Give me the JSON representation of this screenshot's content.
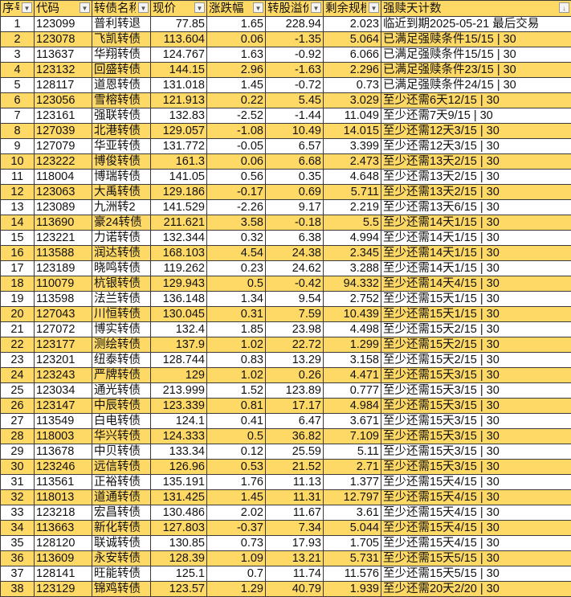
{
  "colors": {
    "header_bg": "#FFD966",
    "alt_row_bg": "#FFD966",
    "grid": "#3a3a3a"
  },
  "columns": [
    "序号",
    "代码",
    "转债名称",
    "现价",
    "涨跌幅",
    "转股溢价率",
    "剩余规模",
    "强赎天计数"
  ],
  "filter_icons": [
    "filter-dropdown-icon",
    "filter-dropdown-icon",
    "filter-dropdown-icon",
    "filter-dropdown-icon",
    "filter-dropdown-icon",
    "filter-dropdown-icon",
    "filter-dropdown-icon",
    "sort-filter-icon"
  ],
  "rows": [
    [
      "1",
      "123099",
      "普利转退",
      "77.85",
      "1.65",
      "228.94",
      "2.023",
      "临近到期2025-05-21 最后交易"
    ],
    [
      "2",
      "123078",
      "飞凯转债",
      "113.604",
      "0.06",
      "-1.35",
      "5.064",
      "已满足强赎条件15/15 | 30"
    ],
    [
      "3",
      "113637",
      "华翔转债",
      "124.767",
      "1.63",
      "-0.92",
      "6.066",
      "已满足强赎条件15/15 | 30"
    ],
    [
      "4",
      "123132",
      "回盛转债",
      "144.15",
      "2.96",
      "-1.63",
      "2.296",
      "已满足强赎条件23/15 | 30"
    ],
    [
      "5",
      "128117",
      "道恩转债",
      "131.018",
      "1.45",
      "-0.72",
      "0.73",
      "已满足强赎条件24/15 | 30"
    ],
    [
      "6",
      "123056",
      "雪榕转债",
      "121.913",
      "0.22",
      "5.45",
      "3.029",
      "至少还需6天12/15 | 30"
    ],
    [
      "7",
      "123161",
      "强联转债",
      "132.83",
      "-2.52",
      "-1.44",
      "11.049",
      "至少还需7天9/15 | 30"
    ],
    [
      "8",
      "127039",
      "北港转债",
      "129.057",
      "-1.08",
      "10.49",
      "14.015",
      "至少还需12天3/15 | 30"
    ],
    [
      "9",
      "127079",
      "华亚转债",
      "131.772",
      "-0.05",
      "6.57",
      "3.399",
      "至少还需12天3/15 | 30"
    ],
    [
      "10",
      "123222",
      "博俊转债",
      "161.3",
      "0.06",
      "6.68",
      "2.473",
      "至少还需13天2/15 | 30"
    ],
    [
      "11",
      "118004",
      "博瑞转债",
      "141.05",
      "0.56",
      "0.35",
      "4.648",
      "至少还需13天2/15 | 30"
    ],
    [
      "12",
      "123063",
      "大禹转债",
      "129.186",
      "-0.17",
      "0.69",
      "5.711",
      "至少还需13天2/15 | 30"
    ],
    [
      "13",
      "123089",
      "九洲转2",
      "141.529",
      "-2.26",
      "9.17",
      "2.219",
      "至少还需13天6/15 | 30"
    ],
    [
      "14",
      "113690",
      "豪24转债",
      "211.621",
      "3.58",
      "-0.18",
      "5.5",
      "至少还需14天1/15 | 30"
    ],
    [
      "15",
      "123221",
      "力诺转债",
      "132.344",
      "0.32",
      "6.38",
      "4.994",
      "至少还需14天1/15 | 30"
    ],
    [
      "16",
      "113588",
      "润达转债",
      "168.103",
      "4.54",
      "24.38",
      "2.345",
      "至少还需14天1/15 | 30"
    ],
    [
      "17",
      "123189",
      "晓鸣转债",
      "119.262",
      "0.23",
      "24.62",
      "3.288",
      "至少还需14天1/15 | 30"
    ],
    [
      "18",
      "110079",
      "杭银转债",
      "129.943",
      "0.5",
      "-0.42",
      "94.332",
      "至少还需14天4/15 | 30"
    ],
    [
      "19",
      "113598",
      "法兰转债",
      "136.148",
      "1.34",
      "9.54",
      "2.752",
      "至少还需15天1/15 | 30"
    ],
    [
      "20",
      "127043",
      "川恒转债",
      "130.045",
      "0.31",
      "7.59",
      "10.439",
      "至少还需15天1/15 | 30"
    ],
    [
      "21",
      "127072",
      "博实转债",
      "132.4",
      "1.85",
      "23.98",
      "4.498",
      "至少还需15天2/15 | 30"
    ],
    [
      "22",
      "123177",
      "测绘转债",
      "137.9",
      "1.02",
      "22.72",
      "1.299",
      "至少还需15天2/15 | 30"
    ],
    [
      "23",
      "123201",
      "纽泰转债",
      "128.744",
      "0.83",
      "13.29",
      "3.158",
      "至少还需15天2/15 | 30"
    ],
    [
      "24",
      "123243",
      "严牌转债",
      "129",
      "1.02",
      "0.26",
      "4.471",
      "至少还需15天3/15 | 30"
    ],
    [
      "25",
      "123034",
      "通光转债",
      "213.999",
      "1.52",
      "123.89",
      "0.777",
      "至少还需15天3/15 | 30"
    ],
    [
      "26",
      "123147",
      "中辰转债",
      "123.339",
      "0.81",
      "17.17",
      "4.984",
      "至少还需15天3/15 | 30"
    ],
    [
      "27",
      "113549",
      "白电转债",
      "124.1",
      "0.41",
      "6.47",
      "3.671",
      "至少还需15天3/15 | 30"
    ],
    [
      "28",
      "118003",
      "华兴转债",
      "124.333",
      "0.5",
      "36.82",
      "7.109",
      "至少还需15天3/15 | 30"
    ],
    [
      "29",
      "113678",
      "中贝转债",
      "133.34",
      "0.12",
      "25.59",
      "5.11",
      "至少还需15天3/15 | 30"
    ],
    [
      "30",
      "123246",
      "远信转债",
      "126.96",
      "0.53",
      "21.52",
      "2.71",
      "至少还需15天3/15 | 30"
    ],
    [
      "31",
      "113561",
      "正裕转债",
      "135.191",
      "1.76",
      "11.13",
      "1.377",
      "至少还需15天4/15 | 30"
    ],
    [
      "32",
      "118013",
      "道通转债",
      "131.425",
      "1.45",
      "11.31",
      "12.797",
      "至少还需15天4/15 | 30"
    ],
    [
      "33",
      "123218",
      "宏昌转债",
      "130.486",
      "2.02",
      "11.67",
      "3.61",
      "至少还需15天4/15 | 30"
    ],
    [
      "34",
      "113663",
      "新化转债",
      "127.803",
      "-0.37",
      "7.34",
      "5.044",
      "至少还需15天4/15 | 30"
    ],
    [
      "35",
      "128120",
      "联诚转债",
      "130.85",
      "0.73",
      "17.93",
      "1.705",
      "至少还需15天4/15 | 30"
    ],
    [
      "36",
      "113609",
      "永安转债",
      "128.39",
      "1.09",
      "13.21",
      "5.731",
      "至少还需15天5/15 | 30"
    ],
    [
      "37",
      "128141",
      "旺能转债",
      "125.1",
      "0.7",
      "11.74",
      "11.576",
      "至少还需15天5/15 | 30"
    ],
    [
      "38",
      "123129",
      "锦鸡转债",
      "123.57",
      "1.29",
      "40.79",
      "1.939",
      "至少还需20天2/20 | 30"
    ]
  ]
}
